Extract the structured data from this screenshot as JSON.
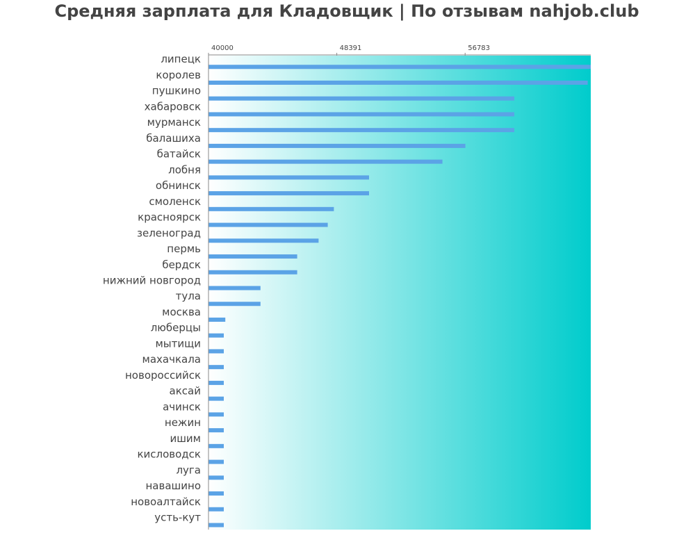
{
  "chart_data": {
    "type": "bar",
    "orientation": "horizontal",
    "title": "Средняя зарплата для Кладовщик | По отзывам nahjob.club",
    "xlabel": "",
    "ylabel": "",
    "xlim": [
      40000,
      65000
    ],
    "x_ticks": [
      "40000",
      "48391",
      "56783"
    ],
    "x_tick_values": [
      40000,
      48391,
      56783
    ],
    "x_axis_position": "top",
    "grid": false,
    "categories": [
      "липецк",
      "королев",
      "пушкино",
      "хабаровск",
      "мурманск",
      "балашиха",
      "батайск",
      "лобня",
      "обнинск",
      "смоленск",
      "красноярск",
      "зеленоград",
      "пермь",
      "бердск",
      "нижний новгород",
      "тула",
      "москва",
      "люберцы",
      "мытищи",
      "махачкала",
      "новороссийск",
      "аксай",
      "ачинск",
      "нежин",
      "ишим",
      "кисловодск",
      "луга",
      "навашино",
      "новоалтайск",
      "усть-кут"
    ],
    "values": [
      65000,
      64800,
      60000,
      60000,
      60000,
      56800,
      55300,
      50500,
      50500,
      48200,
      47800,
      47200,
      45800,
      45800,
      43400,
      43400,
      41100,
      41000,
      41000,
      41000,
      41000,
      41000,
      41000,
      41000,
      41000,
      41000,
      41000,
      41000,
      41000,
      41000
    ],
    "colors": {
      "bar": "#5ba3e6",
      "gradient_start": "#ffffff",
      "gradient_end": "#00cccc",
      "axis": "#888888",
      "text": "#444444"
    }
  }
}
